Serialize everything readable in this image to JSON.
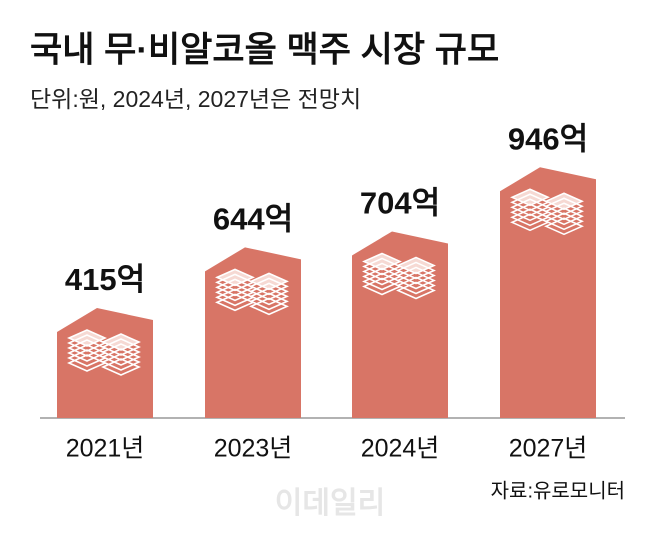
{
  "chart_data": {
    "type": "bar",
    "title": "국내 무·비알코올 맥주 시장 규모",
    "subtitle": "단위:원, 2024년, 2027년은 전망치",
    "categories": [
      "2021년",
      "2023년",
      "2024년",
      "2027년"
    ],
    "values": [
      415,
      644,
      704,
      946
    ],
    "value_labels": [
      "415억",
      "644억",
      "704억",
      "946억"
    ],
    "color": "#d87566",
    "source": "자료:유로모니터",
    "watermark": "이데일리"
  }
}
